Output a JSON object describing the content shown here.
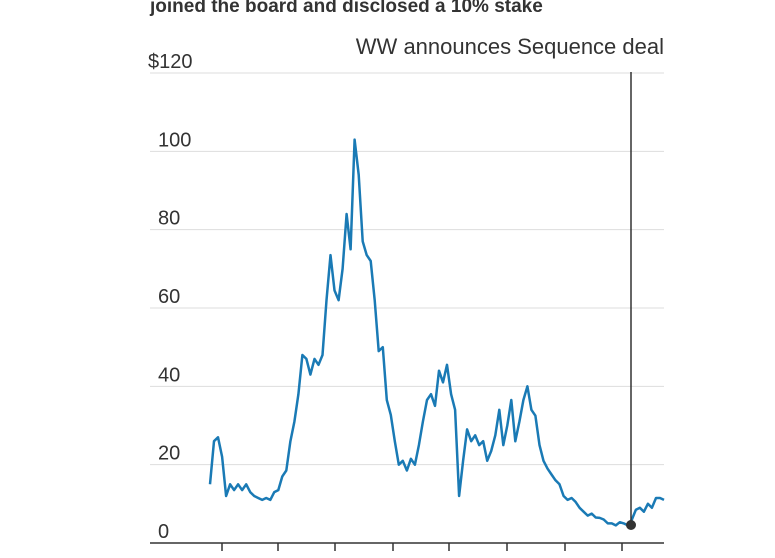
{
  "chart_data": {
    "type": "line",
    "title": "joined the board and disclosed a 10% stake",
    "annotation": "WW announces Sequence deal",
    "series": [
      {
        "color": "#1a7ab5",
        "values": [
          15,
          26,
          27,
          22,
          12,
          15,
          13.5,
          15,
          13.5,
          15,
          13,
          12,
          11.5,
          11,
          11.5,
          11,
          13,
          13.5,
          17,
          18.5,
          26,
          31,
          38,
          48,
          47,
          43,
          47,
          45.5,
          48,
          62,
          73.5,
          64.5,
          62,
          70,
          84,
          75,
          103,
          94,
          77,
          73.5,
          72,
          62,
          49,
          50,
          36.5,
          32.7,
          26,
          20,
          21,
          18.5,
          21.5,
          20,
          25,
          31,
          36.5,
          38,
          35,
          44,
          41,
          45.5,
          38,
          34,
          12,
          21,
          29,
          26,
          27.5,
          25,
          26,
          21,
          23.5,
          27.5,
          34,
          25,
          30,
          36.5,
          26,
          31,
          36.5,
          40,
          34,
          32.5,
          25,
          21,
          19,
          17.5,
          16,
          15,
          12,
          11,
          11.5,
          10.5,
          9,
          8,
          7,
          7.5,
          6.5,
          6.4,
          6,
          5,
          5,
          4.5,
          5.3,
          5,
          4.5,
          6,
          8.5,
          9,
          8,
          10,
          9,
          11.5,
          11.5,
          11
        ]
      }
    ],
    "ylim": [
      0,
      120
    ],
    "yticks": [
      0,
      20,
      40,
      60,
      80,
      100,
      {
        "value": 120,
        "label": "$120"
      }
    ],
    "grid": true
  }
}
